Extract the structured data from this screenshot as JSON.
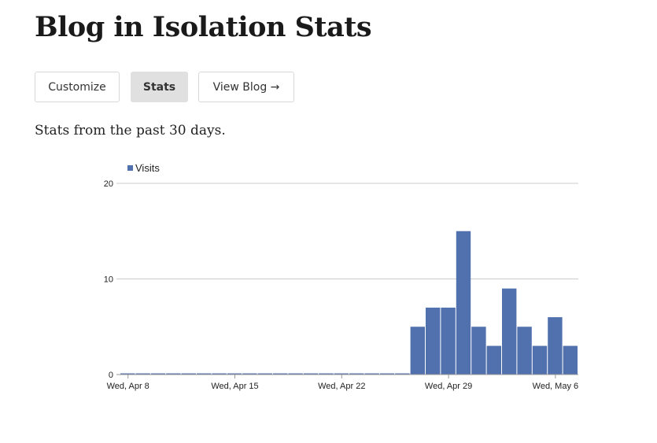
{
  "page": {
    "title": "Blog in Isolation Stats",
    "intro": "Stats from the past 30 days."
  },
  "nav": {
    "customize": "Customize",
    "stats": "Stats",
    "view_blog": "View Blog →"
  },
  "chart_data": {
    "type": "bar",
    "legend": {
      "entries": [
        "Visits"
      ],
      "placement": "top-left"
    },
    "series": [
      {
        "name": "Visits",
        "color": "#5170ae",
        "values": [
          0,
          0,
          0,
          0,
          0,
          0,
          0,
          0,
          0,
          0,
          0,
          0,
          0,
          0,
          0,
          0,
          0,
          0,
          0,
          5,
          7,
          7,
          15,
          5,
          3,
          9,
          5,
          3,
          6,
          3
        ]
      }
    ],
    "categories_start": "Wed, Apr 8",
    "xtick_labels": [
      "Wed, Apr 8",
      "Wed, Apr 15",
      "Wed, Apr 22",
      "Wed, Apr 29",
      "Wed, May 6"
    ],
    "xtick_indices": [
      0,
      7,
      14,
      21,
      28
    ],
    "ylim": [
      0,
      20
    ],
    "ytick_labels": [
      "0",
      "10",
      "20"
    ],
    "grid": true
  }
}
